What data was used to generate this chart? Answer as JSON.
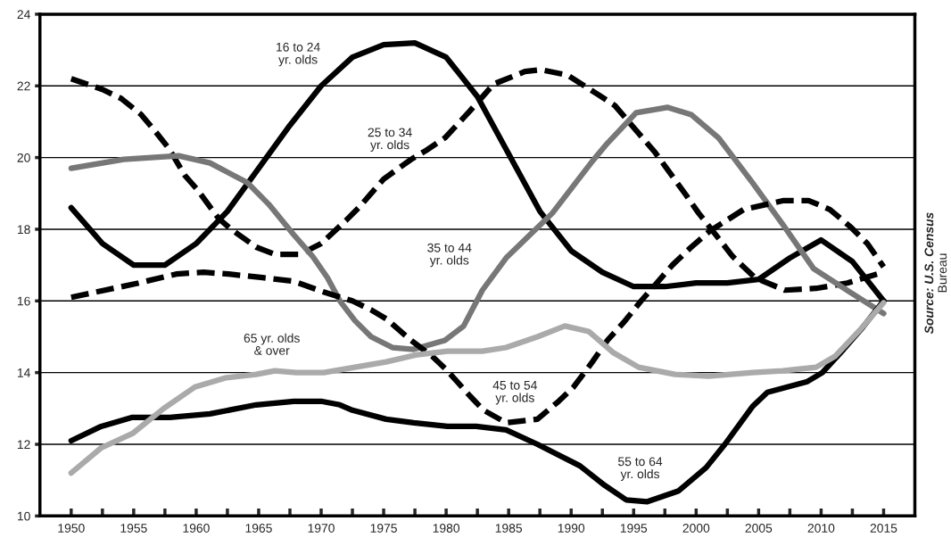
{
  "chart_data": {
    "type": "line",
    "xlim": [
      1947.5,
      2017.5
    ],
    "xticks": [
      1950,
      {
        "value": 1952.5,
        "label": null
      },
      1955,
      {
        "value": 1957.5,
        "label": null
      },
      1960,
      {
        "value": 1962.5,
        "label": null
      },
      1965,
      {
        "value": 1967.5,
        "label": null
      },
      1970,
      {
        "value": 1972.5,
        "label": null
      },
      1975,
      {
        "value": 1977.5,
        "label": null
      },
      1980,
      {
        "value": 1982.5,
        "label": null
      },
      1985,
      {
        "value": 1987.5,
        "label": null
      },
      1990,
      {
        "value": 1992.5,
        "label": null
      },
      1995,
      {
        "value": 1997.5,
        "label": null
      },
      2000,
      {
        "value": 2002.5,
        "label": null
      },
      2005,
      {
        "value": 2007.5,
        "label": null
      },
      2010,
      {
        "value": 2012.5,
        "label": null
      },
      2015
    ],
    "ylim": [
      10,
      24
    ],
    "yticks": [
      10,
      12,
      14,
      16,
      18,
      20,
      22,
      24
    ],
    "grid": "y",
    "marker": "none",
    "series": [
      {
        "name": "16 to 24\nyr. olds",
        "color": "#000000",
        "line_style": "solid",
        "x": [
          1950,
          1952.5,
          1955,
          1957.5,
          1960,
          1962.5,
          1965,
          1967.5,
          1970,
          1972.5,
          1975,
          1977.5,
          1980,
          1982.5,
          1985,
          1987.5,
          1990,
          1992.5,
          1995,
          1997.5,
          2000,
          2002.5,
          2005,
          2007.5,
          2010,
          2012.5,
          2015
        ],
        "values": [
          18.6,
          17.6,
          17.0,
          17.0,
          17.6,
          18.5,
          19.7,
          20.9,
          22.0,
          22.8,
          23.15,
          23.2,
          22.8,
          21.7,
          20.1,
          18.5,
          17.4,
          16.8,
          16.4,
          16.4,
          16.5,
          16.5,
          16.6,
          17.2,
          17.7,
          17.1,
          16.0
        ]
      },
      {
        "name": "25 to 34\nyr. olds",
        "color": "#000000",
        "line_style": "dashed",
        "x": [
          1950,
          1952.5,
          1954,
          1955.6,
          1956.8,
          1957.8,
          1959.1,
          1960.1,
          1961.8,
          1962.8,
          1964.8,
          1966.3,
          1968.3,
          1970,
          1972,
          1973,
          1975,
          1977.2,
          1978.4,
          1979.9,
          1981.9,
          1983.8,
          1986.3,
          1987.6,
          1989.7,
          1992.2,
          1993.5,
          1996.7,
          1999.2,
          2000.2,
          2001.9,
          2002.9,
          2004.7,
          2007.1,
          2009.6,
          2012.1,
          2015
        ],
        "values": [
          22.2,
          21.9,
          21.65,
          21.2,
          20.7,
          20.26,
          19.5,
          19.1,
          18.3,
          18.0,
          17.5,
          17.3,
          17.3,
          17.6,
          18.25,
          18.6,
          19.4,
          19.95,
          20.2,
          20.55,
          21.3,
          22.05,
          22.4,
          22.45,
          22.3,
          21.75,
          21.45,
          20.15,
          18.95,
          18.45,
          17.7,
          17.25,
          16.65,
          16.3,
          16.35,
          16.5,
          16.8
        ]
      },
      {
        "name": "35 to 44\nyr. olds",
        "color": "#777777",
        "line_style": "solid",
        "x": [
          1950,
          1954.2,
          1958.6,
          1961.1,
          1964.1,
          1965.8,
          1967.8,
          1969.3,
          1970.5,
          1971.5,
          1972.7,
          1974,
          1975.7,
          1977.4,
          1979.9,
          1981.4,
          1982.9,
          1984.8,
          1988.5,
          1991.7,
          1992.9,
          1995.2,
          1997.7,
          1999.6,
          2001.8,
          2004.5,
          2007,
          2009.4,
          2012.3,
          2015
        ],
        "values": [
          19.7,
          19.95,
          20.05,
          19.85,
          19.3,
          18.7,
          17.85,
          17.25,
          16.65,
          16.0,
          15.45,
          15.0,
          14.7,
          14.65,
          14.9,
          15.3,
          16.3,
          17.2,
          18.45,
          19.9,
          20.4,
          21.25,
          21.4,
          21.2,
          20.55,
          19.3,
          18.1,
          16.9,
          16.25,
          15.65
        ]
      },
      {
        "name": "45 to 54\nyr. olds",
        "color": "#000000",
        "line_style": "dashed",
        "x": [
          1950,
          1952.7,
          1955.4,
          1958.4,
          1960.6,
          1962.6,
          1965.3,
          1967.8,
          1970.2,
          1972.5,
          1974,
          1975.2,
          1977.2,
          1978.9,
          1980.1,
          1981.9,
          1983,
          1984.8,
          1987.3,
          1989,
          1990.2,
          1991.7,
          1992.9,
          1994.2,
          1995.6,
          1998.1,
          1999.6,
          2001.1,
          2003.8,
          2007,
          2009,
          2010.7,
          2012.4,
          2013.7,
          2015
        ],
        "values": [
          16.1,
          16.3,
          16.5,
          16.75,
          16.8,
          16.75,
          16.65,
          16.55,
          16.25,
          16.0,
          15.75,
          15.5,
          14.9,
          14.45,
          14.05,
          13.35,
          12.95,
          12.6,
          12.7,
          13.2,
          13.6,
          14.3,
          14.9,
          15.4,
          16.0,
          17.0,
          17.5,
          17.95,
          18.55,
          18.8,
          18.8,
          18.55,
          18.05,
          17.6,
          16.95
        ]
      },
      {
        "name": "55 to 64\nyr. olds",
        "color": "#000000",
        "line_style": "solid",
        "x": [
          1950,
          1952.4,
          1954.9,
          1957.9,
          1961.1,
          1964.8,
          1967.8,
          1970,
          1971.5,
          1972.5,
          1975.2,
          1977.4,
          1980.1,
          1982.4,
          1984.8,
          1987.3,
          1990.7,
          1992.7,
          1994.4,
          1996.1,
          1998.6,
          2000.8,
          2002.3,
          2004.5,
          2005.7,
          2008.9,
          2010.1,
          2011.8,
          2013.3,
          2015
        ],
        "values": [
          12.1,
          12.5,
          12.75,
          12.75,
          12.85,
          13.1,
          13.2,
          13.2,
          13.1,
          12.95,
          12.7,
          12.6,
          12.5,
          12.5,
          12.4,
          12.0,
          11.4,
          10.85,
          10.45,
          10.4,
          10.7,
          11.35,
          12.0,
          13.05,
          13.45,
          13.75,
          14.0,
          14.65,
          15.25,
          16.0
        ]
      },
      {
        "name": "65 yr. olds\n& over",
        "color": "#aaaaaa",
        "line_style": "solid",
        "x": [
          1950,
          1952.4,
          1954.9,
          1957.4,
          1959.9,
          1962.3,
          1964.8,
          1966.3,
          1968,
          1970.2,
          1972.7,
          1975.2,
          1977.7,
          1980.1,
          1982.9,
          1984.8,
          1987.3,
          1989.5,
          1991.4,
          1993.4,
          1995.4,
          1998.3,
          2001,
          2004.5,
          2006.9,
          2009.6,
          2011.1,
          2013,
          2015
        ],
        "values": [
          11.2,
          11.9,
          12.3,
          13.0,
          13.6,
          13.85,
          13.95,
          14.05,
          14.0,
          14.0,
          14.15,
          14.3,
          14.5,
          14.6,
          14.6,
          14.7,
          15.0,
          15.3,
          15.15,
          14.55,
          14.15,
          13.95,
          13.9,
          14.0,
          14.05,
          14.15,
          14.45,
          15.15,
          15.95
        ]
      }
    ],
    "annotations": [
      "Source: U.S. Census\nBureau"
    ]
  }
}
